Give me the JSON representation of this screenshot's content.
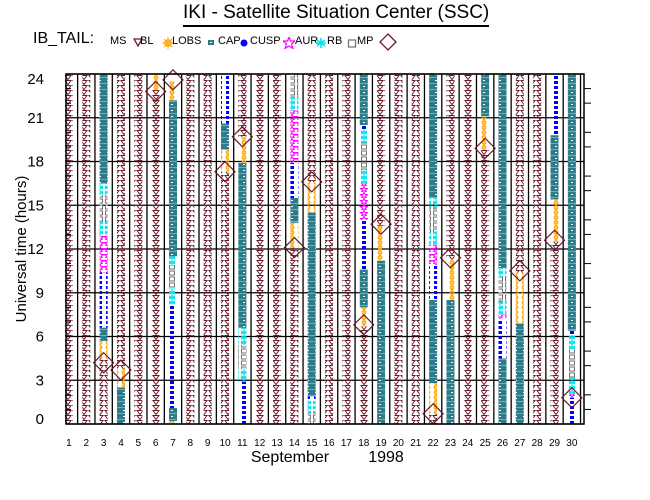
{
  "header": {
    "title": "IKI - Satellite Situation Center (SSC)",
    "legend_prefix": "IB_TAIL:"
  },
  "legend": [
    {
      "label": "MS",
      "region": "MS"
    },
    {
      "label": "BL",
      "region": "BL"
    },
    {
      "label": "LOBS",
      "region": "LOBS"
    },
    {
      "label": "CAP",
      "region": "CAP"
    },
    {
      "label": "CUSP",
      "region": "CUSP"
    },
    {
      "label": "AUR",
      "region": "AUR"
    },
    {
      "label": "RB",
      "region": "RB"
    },
    {
      "label": "MP",
      "region": "MP"
    }
  ],
  "colors": {
    "MS": "#6b1a2a",
    "LOBS": "#ffa500",
    "CAP": "#2e7b8a",
    "CUSP": "#0000ff",
    "AUR": "#ff00ff",
    "RB": "#00e5ee",
    "MP": "#707070",
    "MP_crossing": "#6b1a2a"
  },
  "chart_data": {
    "type": "scatter",
    "title": "IKI - Satellite Situation Center (SSC)",
    "xlabel": "September",
    "xlabel_year": "1998",
    "ylabel": "Universal time (hours)",
    "xlim": [
      0.83,
      30.7
    ],
    "ylim": [
      0,
      24
    ],
    "xticks": [
      1,
      2,
      3,
      4,
      5,
      6,
      7,
      8,
      9,
      10,
      11,
      12,
      13,
      14,
      15,
      16,
      17,
      18,
      19,
      20,
      21,
      22,
      23,
      24,
      25,
      26,
      27,
      28,
      29,
      30
    ],
    "yticks": [
      0,
      3,
      6,
      9,
      12,
      15,
      18,
      21,
      24
    ],
    "grid": true,
    "days": [
      {
        "day": 1,
        "segments": [
          [
            0,
            24,
            "MS"
          ]
        ],
        "mp": []
      },
      {
        "day": 2,
        "segments": [
          [
            0,
            24,
            "MS"
          ]
        ],
        "mp": []
      },
      {
        "day": 3,
        "segments": [
          [
            0,
            4.5,
            "MS"
          ],
          [
            4.5,
            5.7,
            "LOBS"
          ],
          [
            5.7,
            6.6,
            "CAP"
          ],
          [
            6.6,
            10.4,
            "CUSP"
          ],
          [
            10.4,
            12.9,
            "AUR"
          ],
          [
            12.9,
            13.9,
            "RB"
          ],
          [
            13.9,
            15.7,
            "MP"
          ],
          [
            15.7,
            16.5,
            "RB"
          ],
          [
            16.5,
            24,
            "CAP"
          ]
        ],
        "mp": [
          4.2
        ]
      },
      {
        "day": 4,
        "segments": [
          [
            0,
            2.5,
            "CAP"
          ],
          [
            2.5,
            3.8,
            "LOBS"
          ],
          [
            3.8,
            24,
            "MS"
          ]
        ],
        "mp": [
          3.7
        ]
      },
      {
        "day": 5,
        "segments": [
          [
            0,
            24,
            "MS"
          ]
        ],
        "mp": []
      },
      {
        "day": 6,
        "segments": [
          [
            0,
            22.9,
            "MS"
          ],
          [
            22.9,
            24,
            "LOBS"
          ]
        ],
        "mp": [
          22.8
        ]
      },
      {
        "day": 7,
        "segments": [
          [
            0,
            0.2,
            "LOBS"
          ],
          [
            0.2,
            1.1,
            "CAP"
          ],
          [
            1.1,
            8.2,
            "CUSP"
          ],
          [
            8.2,
            9.3,
            "RB"
          ],
          [
            9.3,
            10.9,
            "MP"
          ],
          [
            10.9,
            11.5,
            "RB"
          ],
          [
            11.5,
            22.2,
            "CAP"
          ],
          [
            22.2,
            23.5,
            "LOBS"
          ]
        ],
        "mp": [
          23.6
        ]
      },
      {
        "day": 8,
        "segments": [
          [
            0,
            24,
            "MS"
          ]
        ],
        "mp": []
      },
      {
        "day": 9,
        "segments": [
          [
            0,
            24,
            "MS"
          ]
        ],
        "mp": []
      },
      {
        "day": 10,
        "segments": [
          [
            0,
            17.3,
            "MS"
          ],
          [
            17.3,
            18.8,
            "LOBS"
          ],
          [
            18.8,
            20.6,
            "CAP"
          ],
          [
            20.6,
            24,
            "CUSP"
          ]
        ],
        "mp": [
          17.3
        ]
      },
      {
        "day": 11,
        "segments": [
          [
            0,
            2.9,
            "CUSP"
          ],
          [
            2.9,
            3.8,
            "RB"
          ],
          [
            3.8,
            5.4,
            "MP"
          ],
          [
            5.4,
            6.6,
            "RB"
          ],
          [
            6.6,
            17.9,
            "CAP"
          ],
          [
            17.9,
            19.7,
            "LOBS"
          ],
          [
            19.7,
            24,
            "MS"
          ]
        ],
        "mp": [
          19.7
        ]
      },
      {
        "day": 12,
        "segments": [
          [
            0,
            24,
            "MS"
          ]
        ],
        "mp": []
      },
      {
        "day": 13,
        "segments": [
          [
            0,
            24,
            "MS"
          ]
        ],
        "mp": []
      },
      {
        "day": 14,
        "segments": [
          [
            0,
            12.1,
            "MS"
          ],
          [
            12.1,
            13.8,
            "LOBS"
          ],
          [
            13.8,
            15.5,
            "CAP"
          ],
          [
            15.5,
            17.9,
            "CUSP"
          ],
          [
            17.9,
            21.5,
            "AUR"
          ],
          [
            21.5,
            22.4,
            "RB"
          ],
          [
            22.4,
            24,
            "MP"
          ]
        ],
        "mp": [
          12.1
        ]
      },
      {
        "day": 15,
        "segments": [
          [
            0,
            0.8,
            "MP"
          ],
          [
            0.8,
            1.6,
            "RB"
          ],
          [
            1.6,
            1.9,
            "CUSP"
          ],
          [
            1.9,
            14.5,
            "CAP"
          ],
          [
            14.5,
            16.6,
            "LOBS"
          ],
          [
            16.6,
            24,
            "MS"
          ]
        ],
        "mp": [
          16.6
        ]
      },
      {
        "day": 16,
        "segments": [
          [
            0,
            24,
            "MS"
          ]
        ],
        "mp": []
      },
      {
        "day": 17,
        "segments": [
          [
            0,
            24,
            "MS"
          ]
        ],
        "mp": []
      },
      {
        "day": 18,
        "segments": [
          [
            0,
            6.7,
            "MS"
          ],
          [
            6.7,
            8.0,
            "LOBS"
          ],
          [
            8.0,
            10.6,
            "CAP"
          ],
          [
            10.6,
            14.0,
            "CUSP"
          ],
          [
            14.0,
            16.5,
            "AUR"
          ],
          [
            16.5,
            17.4,
            "RB"
          ],
          [
            17.4,
            19.3,
            "MP"
          ],
          [
            19.3,
            20.2,
            "RB"
          ],
          [
            20.2,
            20.5,
            "CUSP"
          ],
          [
            20.5,
            24,
            "CAP"
          ]
        ],
        "mp": [
          6.8
        ]
      },
      {
        "day": 19,
        "segments": [
          [
            0,
            11.2,
            "CAP"
          ],
          [
            11.2,
            13.6,
            "LOBS"
          ],
          [
            13.6,
            24,
            "MS"
          ]
        ],
        "mp": [
          13.7
        ]
      },
      {
        "day": 20,
        "segments": [
          [
            0,
            24,
            "MS"
          ]
        ],
        "mp": []
      },
      {
        "day": 21,
        "segments": [
          [
            0,
            24,
            "MS"
          ]
        ],
        "mp": []
      },
      {
        "day": 22,
        "segments": [
          [
            0,
            0.7,
            "MS"
          ],
          [
            0.7,
            2.8,
            "LOBS"
          ],
          [
            2.8,
            8.5,
            "CAP"
          ],
          [
            8.5,
            10.9,
            "CUSP"
          ],
          [
            10.9,
            12.3,
            "AUR"
          ],
          [
            12.3,
            13.2,
            "RB"
          ],
          [
            13.2,
            14.8,
            "MP"
          ],
          [
            14.8,
            15.5,
            "RB"
          ],
          [
            15.5,
            24,
            "CAP"
          ]
        ],
        "mp": [
          0.7
        ]
      },
      {
        "day": 23,
        "segments": [
          [
            0,
            8.5,
            "CAP"
          ],
          [
            8.5,
            11.3,
            "LOBS"
          ],
          [
            11.3,
            24,
            "MS"
          ]
        ],
        "mp": [
          11.4
        ]
      },
      {
        "day": 24,
        "segments": [
          [
            0,
            24,
            "MS"
          ]
        ],
        "mp": []
      },
      {
        "day": 25,
        "segments": [
          [
            0,
            18.8,
            "MS"
          ],
          [
            18.8,
            21.1,
            "LOBS"
          ],
          [
            21.1,
            24,
            "CAP"
          ]
        ],
        "mp": [
          18.9
        ]
      },
      {
        "day": 26,
        "segments": [
          [
            0,
            4.5,
            "CAP"
          ],
          [
            4.5,
            7.2,
            "CUSP"
          ],
          [
            7.2,
            7.5,
            "AUR"
          ],
          [
            7.5,
            8.4,
            "RB"
          ],
          [
            8.4,
            10.1,
            "MP"
          ],
          [
            10.1,
            10.7,
            "RB"
          ],
          [
            10.7,
            24,
            "CAP"
          ]
        ],
        "mp": []
      },
      {
        "day": 27,
        "segments": [
          [
            0,
            6.9,
            "CAP"
          ],
          [
            6.9,
            10.4,
            "LOBS"
          ],
          [
            10.4,
            24,
            "MS"
          ]
        ],
        "mp": [
          10.5
        ]
      },
      {
        "day": 28,
        "segments": [
          [
            0,
            24,
            "MS"
          ]
        ],
        "mp": []
      },
      {
        "day": 29,
        "segments": [
          [
            0,
            12.5,
            "MS"
          ],
          [
            12.5,
            15.4,
            "LOBS"
          ],
          [
            15.4,
            19.8,
            "CAP"
          ],
          [
            19.8,
            24,
            "CUSP"
          ]
        ],
        "mp": [
          12.6
        ]
      },
      {
        "day": 30,
        "segments": [
          [
            0,
            1.8,
            "CUSP"
          ],
          [
            1.8,
            2.1,
            "AUR"
          ],
          [
            2.1,
            3.2,
            "RB"
          ],
          [
            3.2,
            5.1,
            "MP"
          ],
          [
            5.1,
            6.1,
            "RB"
          ],
          [
            6.1,
            6.4,
            "CUSP"
          ],
          [
            6.4,
            24,
            "CAP"
          ]
        ],
        "mp": [
          1.8
        ]
      }
    ]
  }
}
